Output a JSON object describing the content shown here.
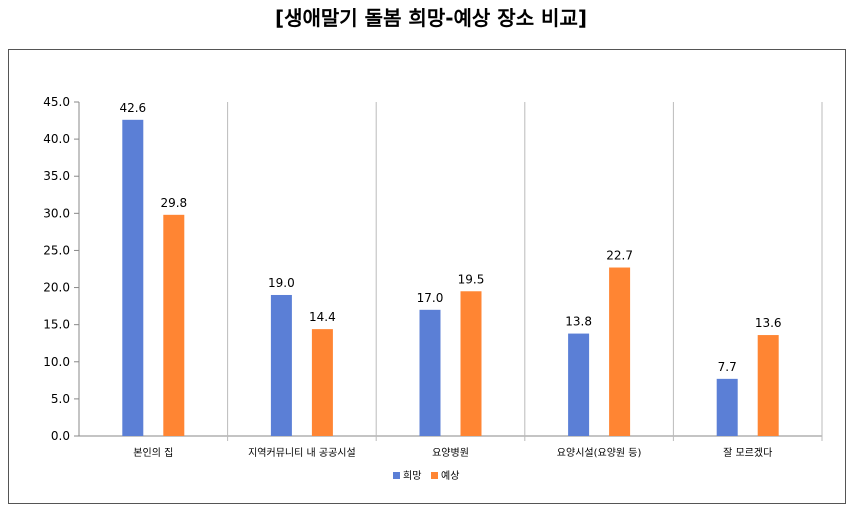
{
  "chart_data": {
    "type": "bar",
    "title": "[생애말기 돌봄 희망-예상 장소 비교]",
    "categories": [
      "본인의 집",
      "지역커뮤니티 내 공공시설",
      "요양병원",
      "요양시설(요양원 등)",
      "잘 모르겠다"
    ],
    "series": [
      {
        "name": "희망",
        "color": "#5B7FD6",
        "values": [
          42.6,
          19.0,
          17.0,
          13.8,
          7.7
        ]
      },
      {
        "name": "예상",
        "color": "#FF8533",
        "values": [
          29.8,
          14.4,
          19.5,
          22.7,
          13.6
        ]
      }
    ],
    "ylim": [
      0,
      45
    ],
    "yticks": [
      "0.0",
      "5.0",
      "10.0",
      "15.0",
      "20.0",
      "25.0",
      "30.0",
      "35.0",
      "40.0",
      "45.0"
    ],
    "grid": "vertical category separators",
    "legend": "bottom-center"
  }
}
